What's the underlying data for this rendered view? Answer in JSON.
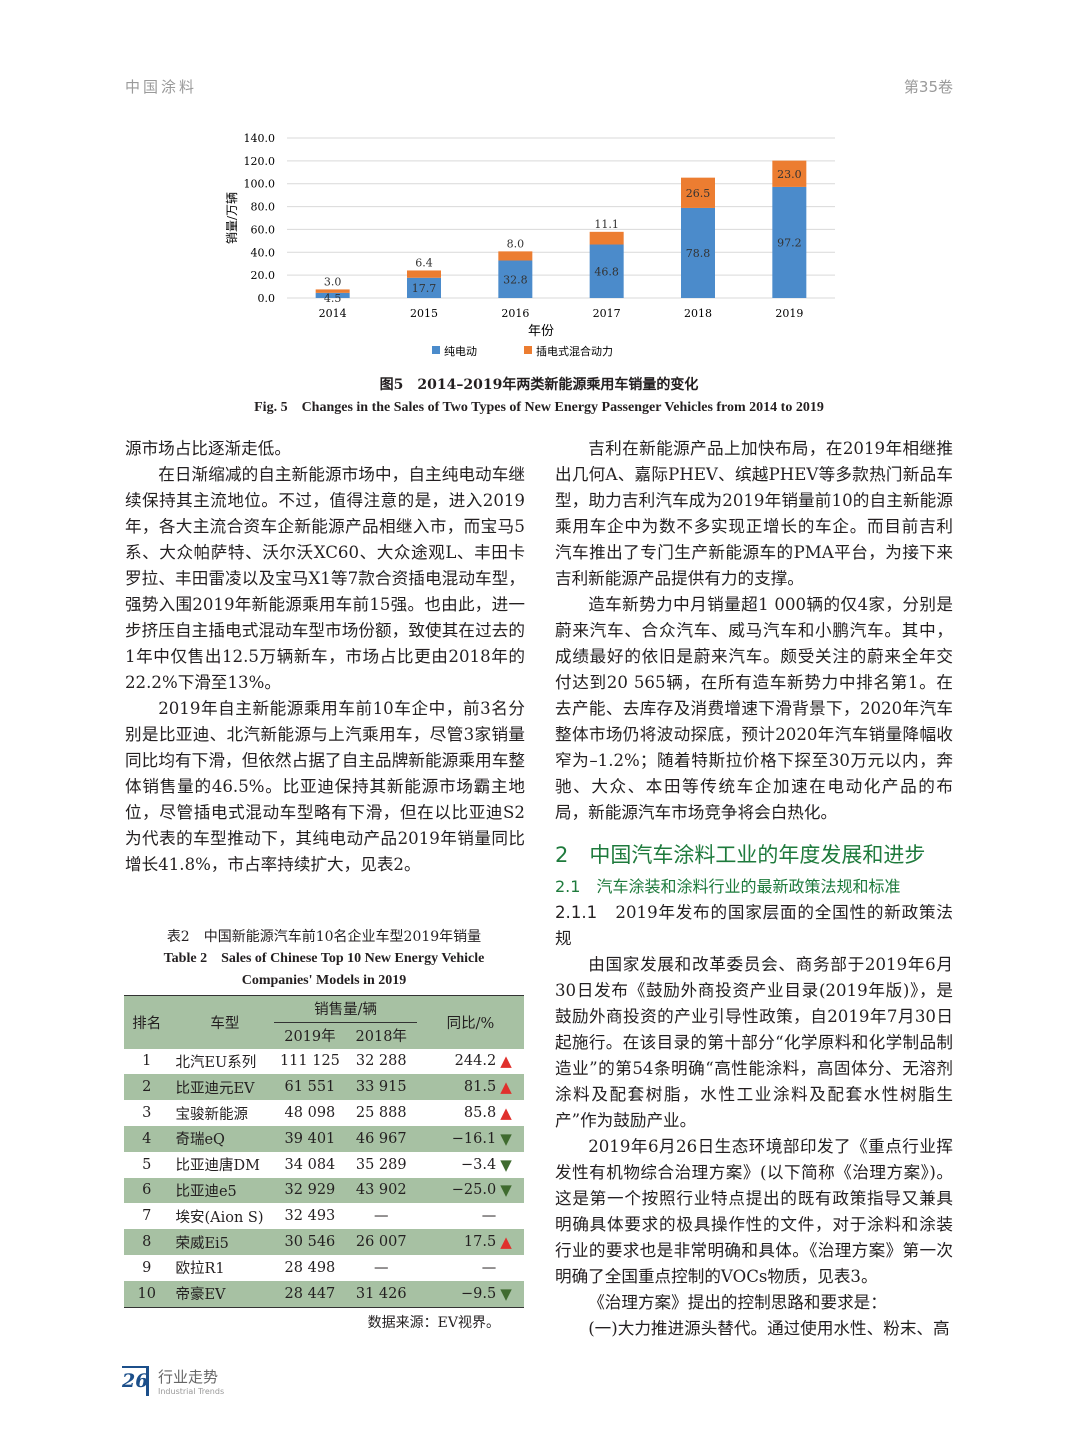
{
  "header": {
    "journal": "中国涂料",
    "volume": "第35卷"
  },
  "figure": {
    "caption_cn": "图5　2014–2019年两类新能源乘用车销量的变化",
    "caption_en": "Fig. 5　Changes in the Sales of Two Types of New Energy Passenger Vehicles from 2014 to 2019"
  },
  "chart_data": {
    "type": "bar",
    "stacked": true,
    "categories": [
      "2014",
      "2015",
      "2016",
      "2017",
      "2018",
      "2019"
    ],
    "series": [
      {
        "name": "纯电动",
        "values": [
          4.5,
          17.7,
          32.8,
          46.8,
          78.8,
          97.2
        ],
        "color": "#4b8bcb"
      },
      {
        "name": "插电式混合动力",
        "values": [
          3.0,
          6.4,
          8.0,
          11.1,
          26.5,
          23.0
        ],
        "color": "#ec7d31"
      }
    ],
    "xlabel": "年份",
    "ylabel": "销量/万辆",
    "ylim": [
      0,
      140
    ],
    "yticks": [
      "0.0",
      "20.0",
      "40.0",
      "60.0",
      "80.0",
      "100.0",
      "120.0",
      "140.0"
    ],
    "grid": true,
    "legend": "bottom"
  },
  "left": {
    "p0": "源市场占比逐渐走低。",
    "p1": "在日渐缩减的自主新能源市场中，自主纯电动车继续保持其主流地位。不过，值得注意的是，进入2019年，各大主流合资车企新能源产品相继入市，而宝马5系、大众帕萨特、沃尔沃XC60、大众途观L、丰田卡罗拉、丰田雷凌以及宝马X1等7款合资插电混动车型，强势入围2019年新能源乘用车前15强。也由此，进一步挤压自主插电式混动车型市场份额，致使其在过去的1年中仅售出12.5万辆新车，市场占比更由2018年的22.2%下滑至13%。",
    "p2": "2019年自主新能源乘用车前10车企中，前3名分别是比亚迪、北汽新能源与上汽乘用车，尽管3家销量同比均有下滑，但依然占据了自主品牌新能源乘用车整体销售量的46.5%。比亚迪保持其新能源市场霸主地位，尽管插电式混动车型略有下滑，但在以比亚迪S2为代表的车型推动下，其纯电动产品2019年销量同比增长41.8%，市占率持续扩大，见表2。"
  },
  "table": {
    "caption_cn": "表2　中国新能源汽车前10名企业车型2019年销量",
    "caption_en_1": "Table 2　Sales of Chinese Top 10 New Energy Vehicle",
    "caption_en_2": "Companies' Models in 2019",
    "headers": {
      "rank": "排名",
      "model": "车型",
      "sales": "销售量/辆",
      "y2019": "2019年",
      "y2018": "2018年",
      "yoy": "同比/%"
    },
    "rows": [
      {
        "rank": "1",
        "model": "北汽EU系列",
        "s2019": "111 125",
        "s2018": "32 288",
        "yoy": "244.2",
        "trend": "up"
      },
      {
        "rank": "2",
        "model": "比亚迪元EV",
        "s2019": "61 551",
        "s2018": "33 915",
        "yoy": "81.5",
        "trend": "up"
      },
      {
        "rank": "3",
        "model": "宝骏新能源",
        "s2019": "48 098",
        "s2018": "25 888",
        "yoy": "85.8",
        "trend": "up"
      },
      {
        "rank": "4",
        "model": "奇瑞eQ",
        "s2019": "39 401",
        "s2018": "46 967",
        "yoy": "−16.1",
        "trend": "down"
      },
      {
        "rank": "5",
        "model": "比亚迪唐DM",
        "s2019": "34 084",
        "s2018": "35 289",
        "yoy": "−3.4",
        "trend": "down"
      },
      {
        "rank": "6",
        "model": "比亚迪e5",
        "s2019": "32 929",
        "s2018": "43 902",
        "yoy": "−25.0",
        "trend": "down"
      },
      {
        "rank": "7",
        "model": "埃安(Aion S)",
        "s2019": "32 493",
        "s2018": "—",
        "yoy": "—",
        "trend": ""
      },
      {
        "rank": "8",
        "model": "荣威Ei5",
        "s2019": "30 546",
        "s2018": "26 007",
        "yoy": "17.5",
        "trend": "up"
      },
      {
        "rank": "9",
        "model": "欧拉R1",
        "s2019": "28 498",
        "s2018": "—",
        "yoy": "—",
        "trend": ""
      },
      {
        "rank": "10",
        "model": "帝豪EV",
        "s2019": "28 447",
        "s2018": "31 426",
        "yoy": "−9.5",
        "trend": "down"
      }
    ],
    "source": "数据来源：EV视界。",
    "colors": {
      "up": "#e0302c",
      "down": "#3f6b2f",
      "band": "#a7c1a3"
    }
  },
  "right": {
    "p3": "吉利在新能源产品上加快布局，在2019年相继推出几何A、嘉际PHEV、缤越PHEV等多款热门新品车型，助力吉利汽车成为2019年销量前10的自主新能源乘用车企中为数不多实现正增长的车企。而目前吉利汽车推出了专门生产新能源车的PMA平台，为接下来吉利新能源产品提供有力的支撑。",
    "p4": "造车新势力中月销量超1 000辆的仅4家，分别是蔚来汽车、合众汽车、威马汽车和小鹏汽车。其中，成绩最好的依旧是蔚来汽车。颇受关注的蔚来全年交付达到20 565辆，在所有造车新势力中排名第1。在去产能、去库存及消费增速下滑背景下，2020年汽车整体市场仍将波动探底，预计2020年汽车销量降幅收窄为–1.2%；随着特斯拉价格下探至30万元以内，奔驰、大众、本田等传统车企加速在电动化产品的布局，新能源汽车市场竞争将会白热化。",
    "h2": "2　中国汽车涂料工业的年度发展和进步",
    "h3": "2.1　汽车涂装和涂料行业的最新政策法规和标准",
    "h4_num": "2.1.1",
    "h4_text": "　2019年发布的国家层面的全国性的新政策法规",
    "p5": "由国家发展和改革委员会、商务部于2019年6月30日发布《鼓励外商投资产业目录(2019年版)》，是鼓励外商投资的产业引导性政策，自2019年7月30日起施行。在该目录的第十部分“化学原料和化学制品制造业”的第54条明确“高性能涂料，高固体分、无溶剂涂料及配套树脂，水性工业涂料及配套水性树脂生产”作为鼓励产业。",
    "p6": "2019年6月26日生态环境部印发了《重点行业挥发性有机物综合治理方案》(以下简称《治理方案》)。这是第一个按照行业特点提出的既有政策指导又兼具明确具体要求的极具操作性的文件，对于涂料和涂装行业的要求也是非常明确和具体。《治理方案》第一次明确了全国重点控制的VOCs物质，见表3。",
    "p7": "《治理方案》提出的控制思路和要求是：",
    "p8": "(一)大力推进源头替代。通过使用水性、粉末、高"
  },
  "footer": {
    "page": "26",
    "section_cn": "行业走势",
    "section_en": "Industrial Trends"
  }
}
